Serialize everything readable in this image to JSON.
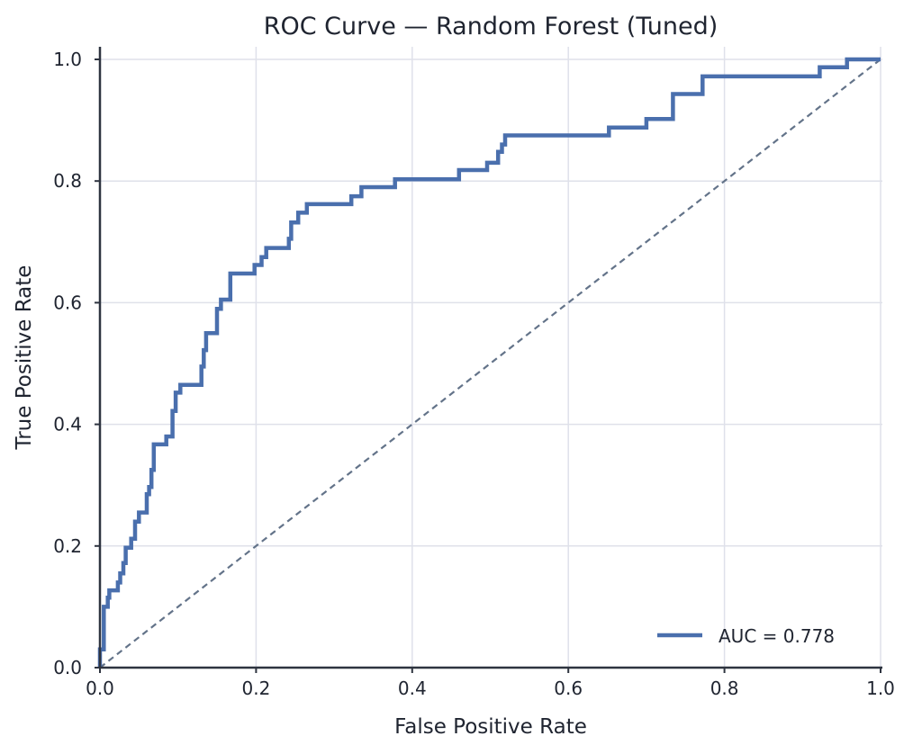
{
  "chart_data": {
    "type": "line",
    "title": "ROC Curve — Random Forest (Tuned)",
    "xlabel": "False Positive Rate",
    "ylabel": "True Positive Rate",
    "xlim": [
      0,
      1
    ],
    "ylim": [
      0,
      1
    ],
    "xticks": [
      "0.0",
      "0.2",
      "0.4",
      "0.6",
      "0.8",
      "1.0"
    ],
    "yticks": [
      "0.0",
      "0.2",
      "0.4",
      "0.6",
      "0.8",
      "1.0"
    ],
    "grid": true,
    "legend_position": "bottom-right",
    "colors": {
      "roc": "#4a6fad",
      "chance": "#637389"
    },
    "series": [
      {
        "name": "AUC = 0.778",
        "style": "solid",
        "points": [
          [
            0.0,
            0.0
          ],
          [
            0.0,
            0.03
          ],
          [
            0.005,
            0.03
          ],
          [
            0.005,
            0.1
          ],
          [
            0.01,
            0.1
          ],
          [
            0.01,
            0.115
          ],
          [
            0.012,
            0.115
          ],
          [
            0.012,
            0.127
          ],
          [
            0.023,
            0.127
          ],
          [
            0.023,
            0.14
          ],
          [
            0.026,
            0.14
          ],
          [
            0.026,
            0.155
          ],
          [
            0.03,
            0.155
          ],
          [
            0.03,
            0.172
          ],
          [
            0.033,
            0.172
          ],
          [
            0.033,
            0.197
          ],
          [
            0.04,
            0.197
          ],
          [
            0.04,
            0.212
          ],
          [
            0.045,
            0.212
          ],
          [
            0.045,
            0.24
          ],
          [
            0.05,
            0.24
          ],
          [
            0.05,
            0.255
          ],
          [
            0.06,
            0.255
          ],
          [
            0.06,
            0.285
          ],
          [
            0.063,
            0.285
          ],
          [
            0.063,
            0.297
          ],
          [
            0.066,
            0.297
          ],
          [
            0.066,
            0.325
          ],
          [
            0.069,
            0.325
          ],
          [
            0.069,
            0.367
          ],
          [
            0.085,
            0.367
          ],
          [
            0.085,
            0.38
          ],
          [
            0.093,
            0.38
          ],
          [
            0.093,
            0.422
          ],
          [
            0.097,
            0.422
          ],
          [
            0.097,
            0.452
          ],
          [
            0.103,
            0.452
          ],
          [
            0.103,
            0.465
          ],
          [
            0.13,
            0.465
          ],
          [
            0.13,
            0.495
          ],
          [
            0.133,
            0.495
          ],
          [
            0.133,
            0.522
          ],
          [
            0.136,
            0.522
          ],
          [
            0.136,
            0.55
          ],
          [
            0.15,
            0.55
          ],
          [
            0.15,
            0.59
          ],
          [
            0.155,
            0.59
          ],
          [
            0.155,
            0.605
          ],
          [
            0.167,
            0.605
          ],
          [
            0.167,
            0.648
          ],
          [
            0.198,
            0.648
          ],
          [
            0.198,
            0.662
          ],
          [
            0.207,
            0.662
          ],
          [
            0.207,
            0.675
          ],
          [
            0.213,
            0.675
          ],
          [
            0.213,
            0.69
          ],
          [
            0.242,
            0.69
          ],
          [
            0.242,
            0.705
          ],
          [
            0.245,
            0.705
          ],
          [
            0.245,
            0.732
          ],
          [
            0.254,
            0.732
          ],
          [
            0.254,
            0.748
          ],
          [
            0.265,
            0.748
          ],
          [
            0.265,
            0.762
          ],
          [
            0.322,
            0.762
          ],
          [
            0.322,
            0.775
          ],
          [
            0.335,
            0.775
          ],
          [
            0.335,
            0.79
          ],
          [
            0.378,
            0.79
          ],
          [
            0.378,
            0.803
          ],
          [
            0.46,
            0.803
          ],
          [
            0.46,
            0.818
          ],
          [
            0.496,
            0.818
          ],
          [
            0.496,
            0.83
          ],
          [
            0.51,
            0.83
          ],
          [
            0.51,
            0.848
          ],
          [
            0.515,
            0.848
          ],
          [
            0.515,
            0.86
          ],
          [
            0.519,
            0.86
          ],
          [
            0.519,
            0.875
          ],
          [
            0.652,
            0.875
          ],
          [
            0.652,
            0.888
          ],
          [
            0.7,
            0.888
          ],
          [
            0.7,
            0.902
          ],
          [
            0.734,
            0.902
          ],
          [
            0.734,
            0.943
          ],
          [
            0.772,
            0.943
          ],
          [
            0.772,
            0.972
          ],
          [
            0.922,
            0.972
          ],
          [
            0.922,
            0.987
          ],
          [
            0.957,
            0.987
          ],
          [
            0.957,
            1.0
          ],
          [
            1.0,
            1.0
          ]
        ]
      },
      {
        "name": "",
        "style": "dashed",
        "points": [
          [
            0,
            0
          ],
          [
            1,
            1
          ]
        ]
      }
    ]
  }
}
